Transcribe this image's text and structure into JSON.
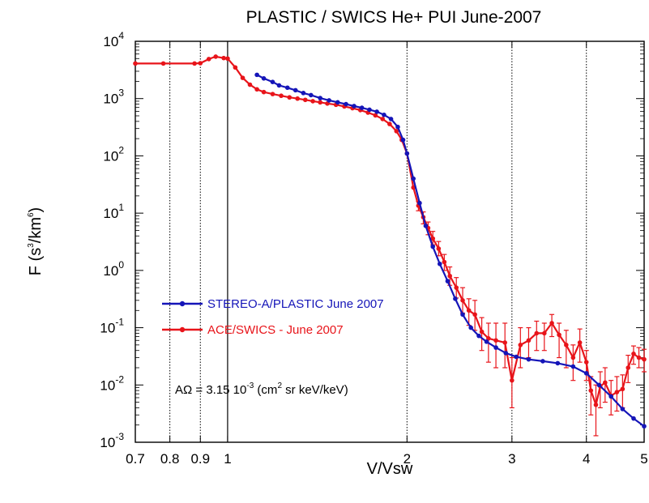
{
  "chart_data": {
    "type": "line",
    "title": "PLASTIC / SWICS He+ PUI  June-2007",
    "xlabel": "V/Vsw",
    "ylabel": {
      "base": "F (s",
      "sup1": "3",
      "mid": "/km",
      "sup2": "6",
      "end": ")"
    },
    "x_scale": "log",
    "y_scale": "log",
    "xlim": [
      0.7,
      5
    ],
    "ylim": [
      0.001,
      10000
    ],
    "x_ticks": [
      {
        "value": 0.7,
        "label": "0.7"
      },
      {
        "value": 0.8,
        "label": "0.8"
      },
      {
        "value": 0.9,
        "label": "0.9"
      },
      {
        "value": 1,
        "label": "1"
      },
      {
        "value": 2,
        "label": "2"
      },
      {
        "value": 3,
        "label": "3"
      },
      {
        "value": 4,
        "label": "4"
      },
      {
        "value": 5,
        "label": "5"
      }
    ],
    "y_ticks": [
      {
        "value": 0.001,
        "base": "10",
        "exp": "-3"
      },
      {
        "value": 0.01,
        "base": "10",
        "exp": "-2"
      },
      {
        "value": 0.1,
        "base": "10",
        "exp": "-1"
      },
      {
        "value": 1,
        "base": "10",
        "exp": "0"
      },
      {
        "value": 10,
        "base": "10",
        "exp": "1"
      },
      {
        "value": 100,
        "base": "10",
        "exp": "2"
      },
      {
        "value": 1000,
        "base": "10",
        "exp": "3"
      },
      {
        "value": 10000,
        "base": "10",
        "exp": "4"
      }
    ],
    "reference_lines": [
      {
        "x": 0.8,
        "style": "dotted"
      },
      {
        "x": 0.9,
        "style": "dotted"
      },
      {
        "x": 1,
        "style": "solid"
      },
      {
        "x": 2,
        "style": "dotted"
      },
      {
        "x": 3,
        "style": "dotted"
      },
      {
        "x": 4,
        "style": "dotted"
      }
    ],
    "annotation": {
      "prefix": "AΩ = 3.15 10",
      "exp1": "-3",
      "mid": " (cm",
      "exp2": "2",
      "suffix": " sr keV/keV)"
    },
    "legend_position": "lower-left",
    "series": [
      {
        "name": "STEREO-A/PLASTIC June 2007",
        "color": "#1515b8",
        "marker": "circle",
        "points": [
          [
            1.12,
            2600
          ],
          [
            1.15,
            2250
          ],
          [
            1.19,
            1950
          ],
          [
            1.22,
            1700
          ],
          [
            1.26,
            1550
          ],
          [
            1.3,
            1400
          ],
          [
            1.34,
            1250
          ],
          [
            1.38,
            1150
          ],
          [
            1.43,
            1020
          ],
          [
            1.48,
            930
          ],
          [
            1.53,
            860
          ],
          [
            1.58,
            800
          ],
          [
            1.63,
            740
          ],
          [
            1.68,
            690
          ],
          [
            1.73,
            640
          ],
          [
            1.78,
            590
          ],
          [
            1.83,
            520
          ],
          [
            1.88,
            440
          ],
          [
            1.93,
            320
          ],
          [
            1.97,
            190
          ],
          [
            2.0,
            110
          ],
          [
            2.05,
            40
          ],
          [
            2.1,
            15
          ],
          [
            2.15,
            6
          ],
          [
            2.21,
            2.6
          ],
          [
            2.27,
            1.3
          ],
          [
            2.34,
            0.65
          ],
          [
            2.41,
            0.32
          ],
          [
            2.48,
            0.17
          ],
          [
            2.56,
            0.1
          ],
          [
            2.64,
            0.072
          ],
          [
            2.72,
            0.057
          ],
          [
            2.82,
            0.045
          ],
          [
            2.93,
            0.036
          ],
          [
            3.05,
            0.031
          ],
          [
            3.2,
            0.028
          ],
          [
            3.38,
            0.026
          ],
          [
            3.58,
            0.024
          ],
          [
            3.8,
            0.021
          ],
          [
            4.0,
            0.016
          ],
          [
            4.2,
            0.01
          ],
          [
            4.4,
            0.0063
          ],
          [
            4.6,
            0.0038
          ],
          [
            4.8,
            0.0026
          ],
          [
            5.0,
            0.0019
          ]
        ]
      },
      {
        "name": "ACE/SWICS - June 2007",
        "color": "#e8141a",
        "marker": "circle",
        "points": [
          [
            0.7,
            4100
          ],
          [
            0.78,
            4100
          ],
          [
            0.88,
            4100
          ],
          [
            0.9,
            4150
          ],
          [
            0.93,
            4900
          ],
          [
            0.955,
            5400
          ],
          [
            0.985,
            5100
          ],
          [
            1.0,
            5000
          ],
          [
            1.03,
            3500
          ],
          [
            1.06,
            2300
          ],
          [
            1.09,
            1750
          ],
          [
            1.12,
            1450
          ],
          [
            1.15,
            1300
          ],
          [
            1.19,
            1200
          ],
          [
            1.23,
            1120
          ],
          [
            1.27,
            1050
          ],
          [
            1.31,
            1000
          ],
          [
            1.35,
            950
          ],
          [
            1.39,
            900
          ],
          [
            1.43,
            860
          ],
          [
            1.47,
            820
          ],
          [
            1.52,
            780
          ],
          [
            1.57,
            730
          ],
          [
            1.62,
            680
          ],
          [
            1.67,
            630
          ],
          [
            1.72,
            570
          ],
          [
            1.77,
            510
          ],
          [
            1.82,
            440
          ],
          [
            1.87,
            360
          ],
          [
            1.92,
            270
          ],
          [
            1.96,
            190
          ],
          [
            2.0,
            110
          ],
          [
            2.05,
            28
          ],
          [
            2.09,
            13.5
          ],
          [
            2.13,
            8.5
          ],
          [
            2.17,
            5.5
          ],
          [
            2.21,
            3.6
          ],
          [
            2.26,
            2.4
          ],
          [
            2.31,
            1.4
          ],
          [
            2.36,
            0.8
          ],
          [
            2.42,
            0.5
          ],
          [
            2.48,
            0.3
          ],
          [
            2.54,
            0.2
          ],
          [
            2.6,
            0.17
          ],
          [
            2.67,
            0.085
          ],
          [
            2.74,
            0.065
          ],
          [
            2.82,
            0.06
          ],
          [
            2.92,
            0.055
          ],
          [
            3.0,
            0.012
          ],
          [
            3.1,
            0.05
          ],
          [
            3.2,
            0.06
          ],
          [
            3.3,
            0.08
          ],
          [
            3.4,
            0.08
          ],
          [
            3.5,
            0.12
          ],
          [
            3.6,
            0.075
          ],
          [
            3.7,
            0.05
          ],
          [
            3.8,
            0.03
          ],
          [
            3.9,
            0.055
          ],
          [
            4.0,
            0.025
          ],
          [
            4.07,
            0.008
          ],
          [
            4.15,
            0.0045
          ],
          [
            4.22,
            0.0095
          ],
          [
            4.3,
            0.011
          ],
          [
            4.4,
            0.0065
          ],
          [
            4.5,
            0.0075
          ],
          [
            4.6,
            0.0085
          ],
          [
            4.7,
            0.02
          ],
          [
            4.8,
            0.035
          ],
          [
            4.9,
            0.03
          ],
          [
            5.0,
            0.028
          ]
        ],
        "error_bars": [
          [
            2.09,
            11,
            16
          ],
          [
            2.13,
            6.5,
            10.5
          ],
          [
            2.17,
            4.2,
            7
          ],
          [
            2.21,
            2.8,
            4.8
          ],
          [
            2.26,
            1.8,
            3.2
          ],
          [
            2.31,
            1.0,
            1.9
          ],
          [
            2.36,
            0.55,
            1.15
          ],
          [
            2.42,
            0.33,
            0.75
          ],
          [
            2.48,
            0.18,
            0.5
          ],
          [
            2.54,
            0.11,
            0.32
          ],
          [
            2.6,
            0.09,
            0.3
          ],
          [
            2.67,
            0.04,
            0.15
          ],
          [
            2.74,
            0.025,
            0.12
          ],
          [
            2.82,
            0.02,
            0.12
          ],
          [
            2.92,
            0.02,
            0.12
          ],
          [
            3.0,
            0.004,
            0.03
          ],
          [
            3.1,
            0.02,
            0.1
          ],
          [
            3.2,
            0.03,
            0.1
          ],
          [
            3.3,
            0.04,
            0.13
          ],
          [
            3.4,
            0.04,
            0.12
          ],
          [
            3.5,
            0.07,
            0.17
          ],
          [
            3.6,
            0.03,
            0.12
          ],
          [
            3.7,
            0.02,
            0.09
          ],
          [
            3.8,
            0.012,
            0.05
          ],
          [
            3.9,
            0.025,
            0.095
          ],
          [
            4.0,
            0.012,
            0.04
          ],
          [
            4.07,
            0.003,
            0.014
          ],
          [
            4.15,
            0.0013,
            0.01
          ],
          [
            4.22,
            0.004,
            0.017
          ],
          [
            4.3,
            0.005,
            0.02
          ],
          [
            4.4,
            0.003,
            0.012
          ],
          [
            4.5,
            0.0035,
            0.014
          ],
          [
            4.6,
            0.004,
            0.015
          ],
          [
            4.7,
            0.011,
            0.033
          ],
          [
            4.8,
            0.023,
            0.048
          ],
          [
            4.9,
            0.02,
            0.045
          ],
          [
            5.0,
            0.017,
            0.042
          ]
        ]
      }
    ]
  }
}
